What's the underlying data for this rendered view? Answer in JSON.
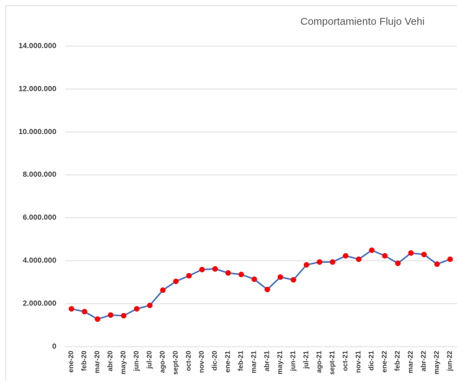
{
  "chart_data": {
    "type": "line",
    "title": "Comportamiento Flujo Vehi",
    "categories": [
      "ene-20",
      "feb-20",
      "mar-20",
      "abr-20",
      "may-20",
      "jun-20",
      "jul-20",
      "ago-20",
      "sept-20",
      "oct-20",
      "nov-20",
      "dic-20",
      "ene-21",
      "feb-21",
      "mar-21",
      "abr-21",
      "may-21",
      "jun-21",
      "jul-21",
      "ago-21",
      "sept-21",
      "oct-21",
      "nov-21",
      "dic-21",
      "ene-22",
      "feb-22",
      "mar-22",
      "abr-22",
      "may-22",
      "jun-22"
    ],
    "series": [
      {
        "color": "#4472c4",
        "marker_color": "#ff0000",
        "values": [
          1760000,
          1630000,
          1280000,
          1470000,
          1440000,
          1760000,
          1920000,
          2630000,
          3040000,
          3300000,
          3590000,
          3620000,
          3430000,
          3360000,
          3140000,
          2660000,
          3240000,
          3110000,
          3810000,
          3940000,
          3940000,
          4230000,
          4070000,
          4490000,
          4230000,
          3880000,
          4360000,
          4290000,
          3840000,
          4070000
        ]
      }
    ],
    "ylim": [
      0,
      14000000
    ],
    "yticks": [
      0,
      {
        "value": 2000000,
        "label": "2.000.000"
      },
      {
        "value": 4000000,
        "label": "4.000.000"
      },
      {
        "value": 6000000,
        "label": "6.000.000"
      },
      {
        "value": 8000000,
        "label": "8.000.000"
      },
      {
        "value": 10000000,
        "label": "10.000.000"
      },
      {
        "value": 12000000,
        "label": "12.000.000"
      },
      {
        "value": 14000000,
        "label": "14.000.000"
      }
    ],
    "grid": true
  }
}
